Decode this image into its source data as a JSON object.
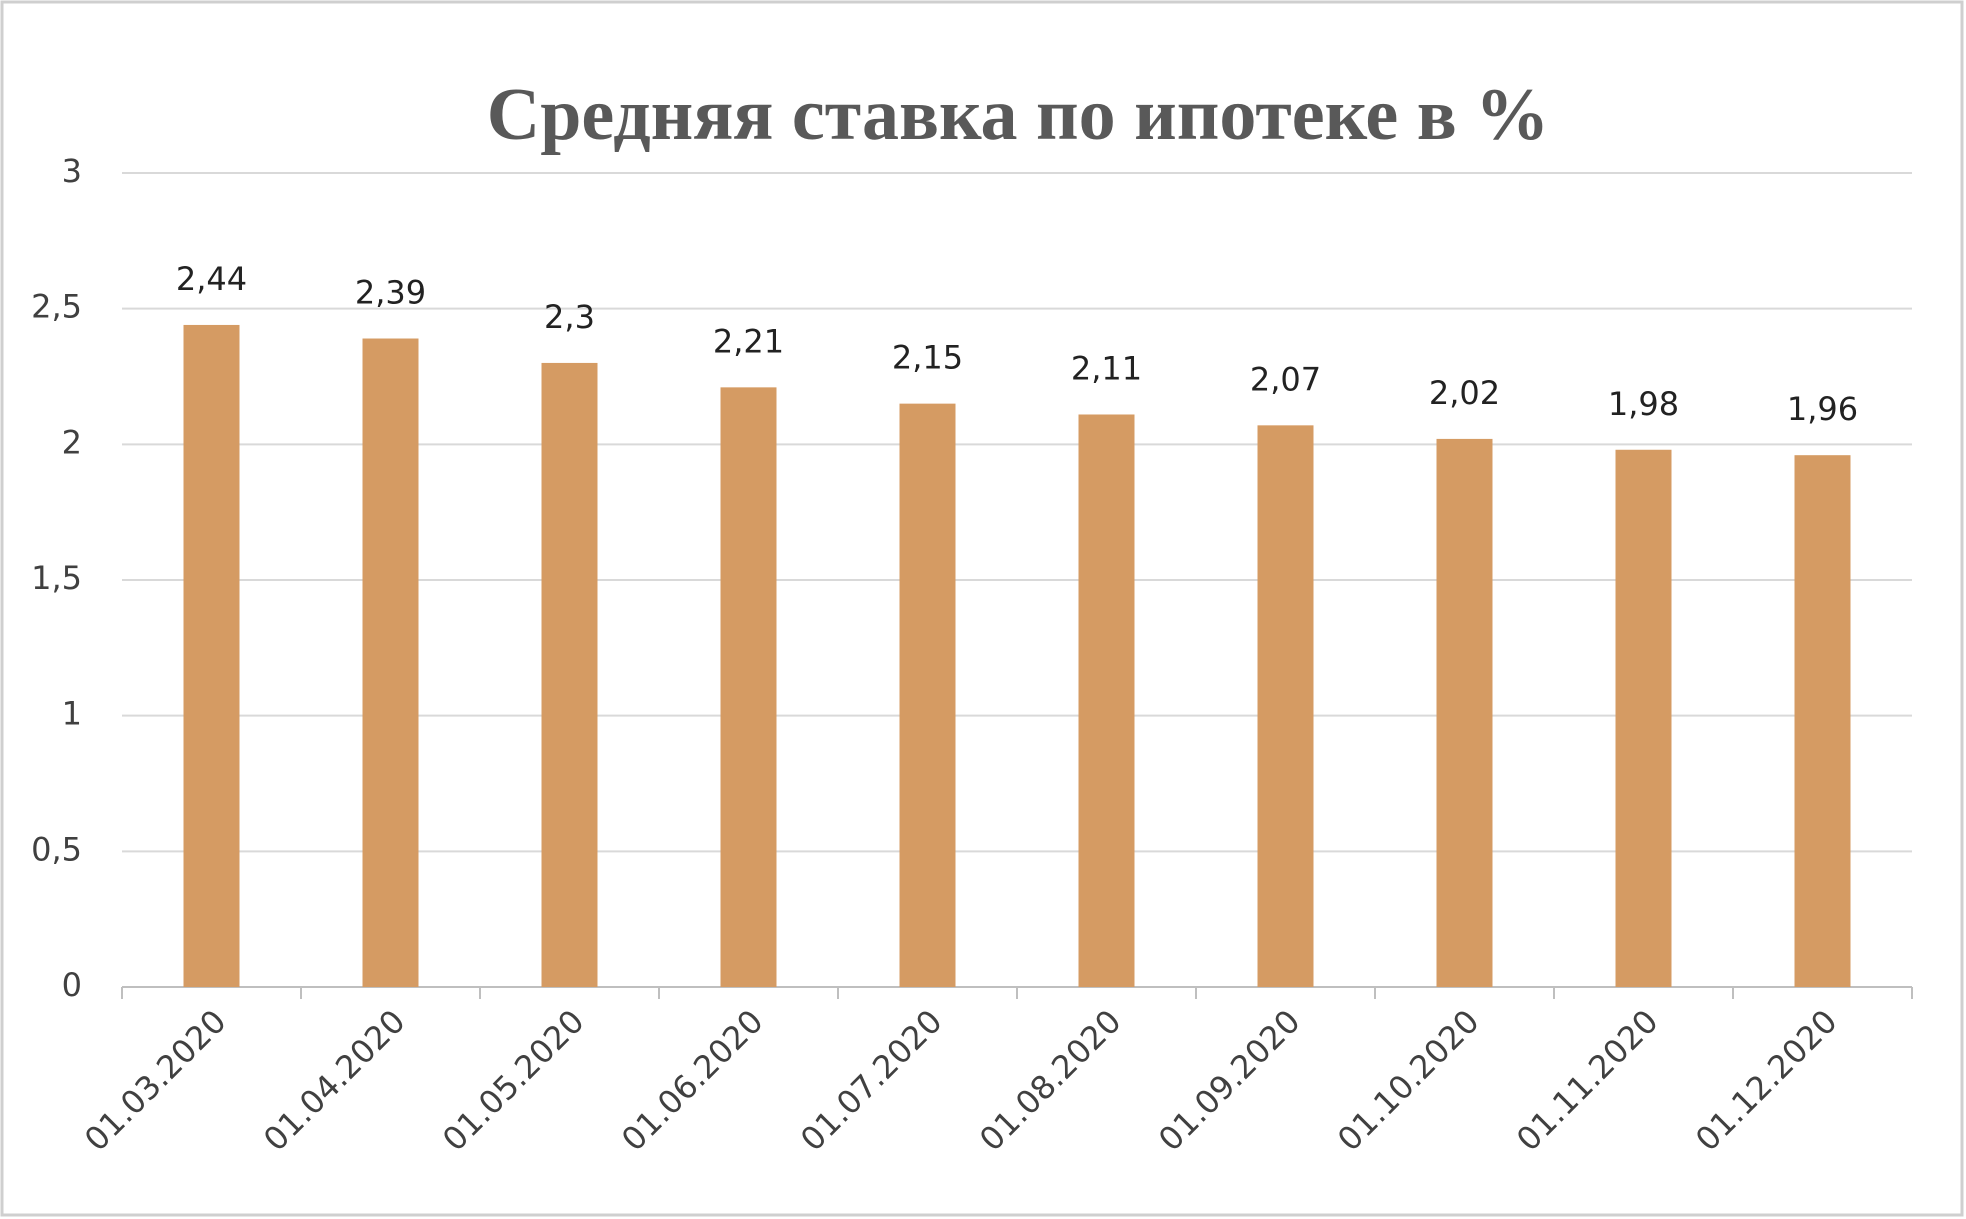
{
  "chart_data": {
    "type": "bar",
    "title": "Средняя ставка по ипотеке в %",
    "categories": [
      "01.03.2020",
      "01.04.2020",
      "01.05.2020",
      "01.06.2020",
      "01.07.2020",
      "01.08.2020",
      "01.09.2020",
      "01.10.2020",
      "01.11.2020",
      "01.12.2020"
    ],
    "values": [
      2.44,
      2.39,
      2.3,
      2.21,
      2.15,
      2.11,
      2.07,
      2.02,
      1.98,
      1.96
    ],
    "value_labels": [
      "2,44",
      "2,39",
      "2,3",
      "2,21",
      "2,15",
      "2,11",
      "2,07",
      "2,02",
      "1,98",
      "1,96"
    ],
    "color": "#d59b63",
    "ylim": [
      0,
      3
    ],
    "yticks": [
      0,
      {
        "value": 0.5,
        "label": "0,5"
      },
      1,
      {
        "value": 1.5,
        "label": "1,5"
      },
      2,
      {
        "value": 2.5,
        "label": "2,5"
      },
      3
    ],
    "grid": true
  }
}
